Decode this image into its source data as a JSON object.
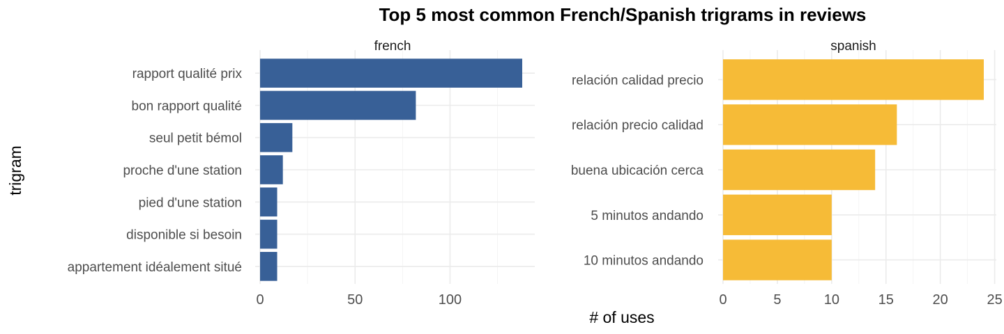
{
  "chart_data": {
    "type": "bar",
    "orientation": "horizontal",
    "title": "Top 5 most common French/Spanish trigrams in reviews",
    "xlabel": "# of uses",
    "ylabel": "trigram",
    "grid": true,
    "legend": "none",
    "panels": [
      {
        "name": "french",
        "color": "#386097",
        "categories": [
          "rapport qualité prix",
          "bon rapport qualité",
          "seul petit bémol",
          "proche d'une station",
          "pied d'une station",
          "disponible si besoin",
          "appartement idéalement situé"
        ],
        "values": [
          138,
          82,
          17,
          12,
          9,
          9,
          9
        ],
        "xlim": [
          0,
          138
        ],
        "xticks": [
          0,
          50,
          100
        ],
        "xtick_labels": [
          "0",
          "50",
          "100"
        ]
      },
      {
        "name": "spanish",
        "color": "#F6BB37",
        "categories": [
          "relación calidad precio",
          "relación precio calidad",
          "buena ubicación cerca",
          "5 minutos andando",
          "10 minutos andando"
        ],
        "values": [
          24,
          16,
          14,
          10,
          10
        ],
        "xlim": [
          0,
          24
        ],
        "xticks": [
          0,
          5,
          10,
          15,
          20,
          25
        ],
        "xtick_labels": [
          "0",
          "5",
          "10",
          "15",
          "20",
          "25"
        ]
      }
    ]
  }
}
